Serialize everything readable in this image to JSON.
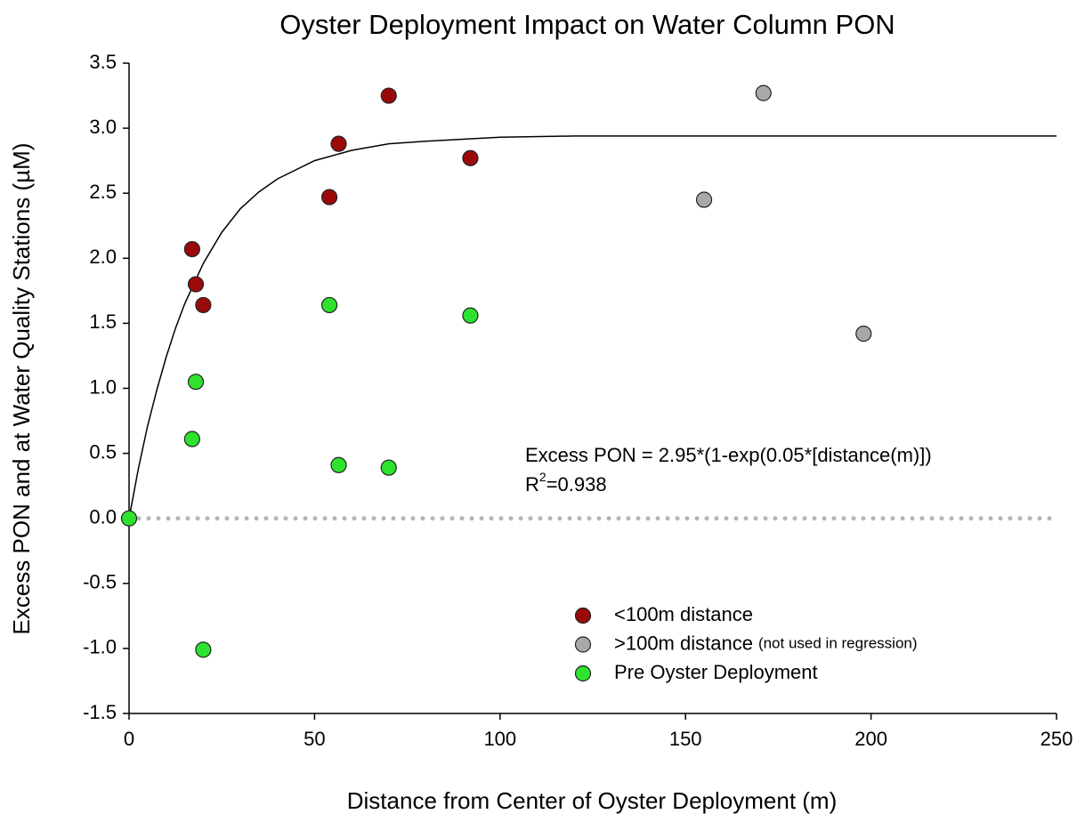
{
  "chart_data": {
    "type": "scatter",
    "title": "Oyster Deployment Impact on Water Column PON",
    "x_label": "Distance from Center of  Oyster Deployment (m)",
    "y_label": "Excess PON and at Water Quality Stations (µM)",
    "xlim": [
      0,
      250
    ],
    "xticks": [
      0,
      50,
      100,
      150,
      200,
      250
    ],
    "ylim": [
      -1.5,
      3.5
    ],
    "yticks": [
      3.5,
      {
        "value": 3,
        "label": "3.0"
      },
      2.5,
      {
        "value": 2,
        "label": "2.0"
      },
      1.5,
      {
        "value": 1,
        "label": "1.0"
      },
      0.5,
      {
        "value": 0,
        "label": "0.0"
      },
      -0.5,
      {
        "value": -1,
        "label": "-1.0"
      },
      -1.5
    ],
    "zero_line": true,
    "series": [
      {
        "name": "<100m distance",
        "color": "#9b0a0a",
        "x": [
          17,
          18,
          20,
          54,
          56.5,
          70,
          92
        ],
        "values": [
          2.07,
          1.8,
          1.64,
          2.47,
          2.88,
          3.25,
          2.77
        ]
      },
      {
        "name": ">100m distance",
        "legend_note": "(not used in regression)",
        "color": "#a8a8a8",
        "x": [
          155,
          171,
          198
        ],
        "values": [
          2.45,
          3.27,
          1.42
        ]
      },
      {
        "name": "Pre Oyster Deployment",
        "color": "#2ee22e",
        "x": [
          0,
          17,
          18,
          20,
          54,
          56.5,
          70,
          92
        ],
        "values": [
          0,
          0.61,
          1.05,
          -1.01,
          1.64,
          0.41,
          0.39,
          1.56
        ]
      }
    ],
    "fit": {
      "color": "#000000",
      "x": [
        0,
        2.5,
        5,
        7.5,
        10,
        12.5,
        15,
        20,
        25,
        30,
        35,
        40,
        50,
        60,
        70,
        80,
        100,
        120,
        150,
        200,
        250
      ],
      "values": [
        0,
        0.38,
        0.71,
        0.99,
        1.24,
        1.46,
        1.65,
        1.96,
        2.2,
        2.38,
        2.51,
        2.61,
        2.75,
        2.83,
        2.88,
        2.9,
        2.93,
        2.94,
        2.94,
        2.94,
        2.94
      ]
    },
    "equation": "Excess PON = 2.95*(1-exp(0.05*[distance(m)])",
    "r_squared": {
      "prefix": "R",
      "sup": "2",
      "text": "=0.938"
    }
  }
}
